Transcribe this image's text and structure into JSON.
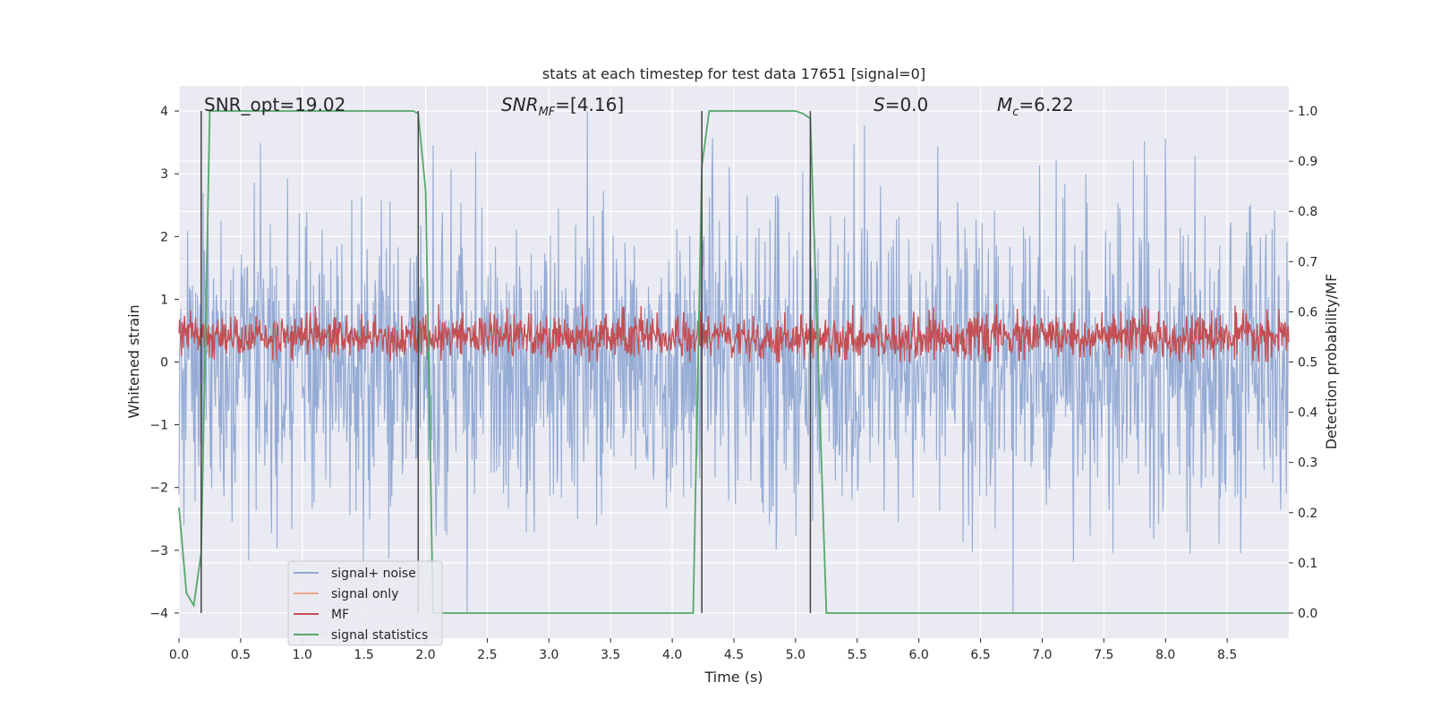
{
  "chart_data": {
    "type": "line",
    "title": "stats at each timestep for test data 17651 [signal=0]",
    "xlabel": "Time (s)",
    "ylabel": "Whitened strain",
    "ylabel_right": "Detection probability/MF",
    "xlim": [
      0.0,
      9.0
    ],
    "ylim": [
      -4.4,
      4.4
    ],
    "ylim_right": [
      -0.05,
      1.05
    ],
    "xticks": [
      0.0,
      0.5,
      1.0,
      1.5,
      2.0,
      2.5,
      3.0,
      3.5,
      4.0,
      4.5,
      5.0,
      5.5,
      6.0,
      6.5,
      7.0,
      7.5,
      8.0,
      8.5
    ],
    "xtick_labels": [
      "0.0",
      "0.5",
      "1.0",
      "1.5",
      "2.0",
      "2.5",
      "3.0",
      "3.5",
      "4.0",
      "4.5",
      "5.0",
      "5.5",
      "6.0",
      "6.5",
      "7.0",
      "7.5",
      "8.0",
      "8.5"
    ],
    "yticks": [
      -4,
      -3,
      -2,
      -1,
      0,
      1,
      2,
      3,
      4
    ],
    "ytick_labels": [
      "−4",
      "−3",
      "−2",
      "−1",
      "0",
      "1",
      "2",
      "3",
      "4"
    ],
    "yticks_right": [
      0.0,
      0.1,
      0.2,
      0.3,
      0.4,
      0.5,
      0.6,
      0.7,
      0.8,
      0.9,
      1.0
    ],
    "ytick_labels_right": [
      "0.0",
      "0.1",
      "0.2",
      "0.3",
      "0.4",
      "0.5",
      "0.6",
      "0.7",
      "0.8",
      "0.9",
      "1.0"
    ],
    "annotations": {
      "snr_opt": "SNR_opt=19.02",
      "snr_mf_main": "SNR",
      "snr_mf_sub": "MF",
      "snr_mf_rest": "=[4.16]",
      "s_main": "S",
      "s_rest": "=0.0",
      "mc_main": "M",
      "mc_sub": "c",
      "mc_rest": "=6.22"
    },
    "legend": {
      "location": "lower-left",
      "entries": [
        {
          "label": "signal+ noise",
          "color": "#8fa8d3"
        },
        {
          "label": "signal only",
          "color": "#eca98d"
        },
        {
          "label": "MF",
          "color": "#c44e52"
        },
        {
          "label": "signal statistics",
          "color": "#55a868"
        }
      ]
    },
    "series": [
      {
        "name": "signal statistics",
        "axis": "right",
        "color": "#55a868",
        "x": [
          0.0,
          0.06,
          0.12,
          0.18,
          0.25,
          0.5,
          1.0,
          1.5,
          1.8,
          1.9,
          1.94,
          2.0,
          2.06,
          2.12,
          2.5,
          3.0,
          3.5,
          4.0,
          4.17,
          4.24,
          4.3,
          4.5,
          5.0,
          5.06,
          5.12,
          5.25,
          5.5,
          6.0,
          7.0,
          8.0,
          9.0
        ],
        "values": [
          0.21,
          0.04,
          0.015,
          0.12,
          1.0,
          1.0,
          1.0,
          1.0,
          1.0,
          1.0,
          0.995,
          0.84,
          0.0,
          0.0,
          0.0,
          0.0,
          0.0,
          0.0,
          0.0,
          0.89,
          1.0,
          1.0,
          1.0,
          0.995,
          0.985,
          0.0,
          0.0,
          0.0,
          0.0,
          0.0,
          0.0
        ]
      },
      {
        "name": "signal+ noise",
        "axis": "left",
        "color": "#8fa8d3",
        "n_samples": 1800,
        "approx_amplitude": 4.0,
        "x_range": [
          0.0,
          9.0
        ]
      },
      {
        "name": "MF",
        "axis": "right",
        "color": "#c44e52",
        "n_samples": 1800,
        "approx_range": [
          0.5,
          0.6
        ],
        "x_range": [
          0.0,
          9.0
        ]
      }
    ],
    "vertical_lines_x": [
      0.18,
      1.94,
      4.24,
      5.12
    ],
    "vertical_lines_range": [
      -4.0,
      4.0
    ]
  }
}
